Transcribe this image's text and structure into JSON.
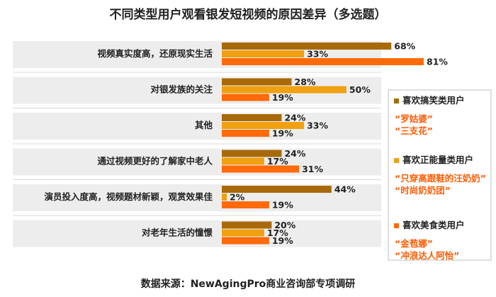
{
  "chart_data": {
    "type": "bar",
    "orientation": "horizontal",
    "title": "不同类型用户观看银发短视频的原因差异（多选题）",
    "categories": [
      "视频真实度高，还原现实生活",
      "对银发族的关注",
      "其他",
      "通过视频更好的了解家中老人",
      "演员投入度高，视频题材新颖，观赏效果佳",
      "对老年生活的憧憬"
    ],
    "series": [
      {
        "name": "喜欢搞笑类用户",
        "color": "#A86A08",
        "values": [
          68,
          28,
          24,
          24,
          44,
          20
        ],
        "labels": [
          "68%",
          "28%",
          "24%",
          "24%",
          "44%",
          "20%"
        ]
      },
      {
        "name": "喜欢正能量类用户",
        "color": "#F0A010",
        "values": [
          33,
          50,
          33,
          17,
          2,
          17
        ],
        "labels": [
          "33%",
          "50%",
          "33%",
          "17%",
          "2%",
          "17%"
        ]
      },
      {
        "name": "喜欢美食类用户",
        "color": "#FF6A0A",
        "values": [
          81,
          19,
          19,
          31,
          19,
          19
        ],
        "labels": [
          "81%",
          "19%",
          "19%",
          "31%",
          "19%",
          "19%"
        ]
      }
    ],
    "xlim": [
      0,
      100
    ],
    "grid": false,
    "legend_position": "right"
  },
  "legend_examples": [
    [
      "“罗姑婆”",
      "“三支花”"
    ],
    [
      "“只穿高跟鞋的汪奶奶”",
      "“时尚奶奶团”"
    ],
    [
      "“金苞娜”",
      "“冲浪达人阿怡”"
    ]
  ],
  "legend_example_color": "#FF5A00",
  "source": "数据来源：NewAgingPro商业咨询部专项调研",
  "colors": {
    "band": "#EDEDED",
    "divider": "#D9D9D9",
    "legend_border": "#BFBFBF"
  }
}
